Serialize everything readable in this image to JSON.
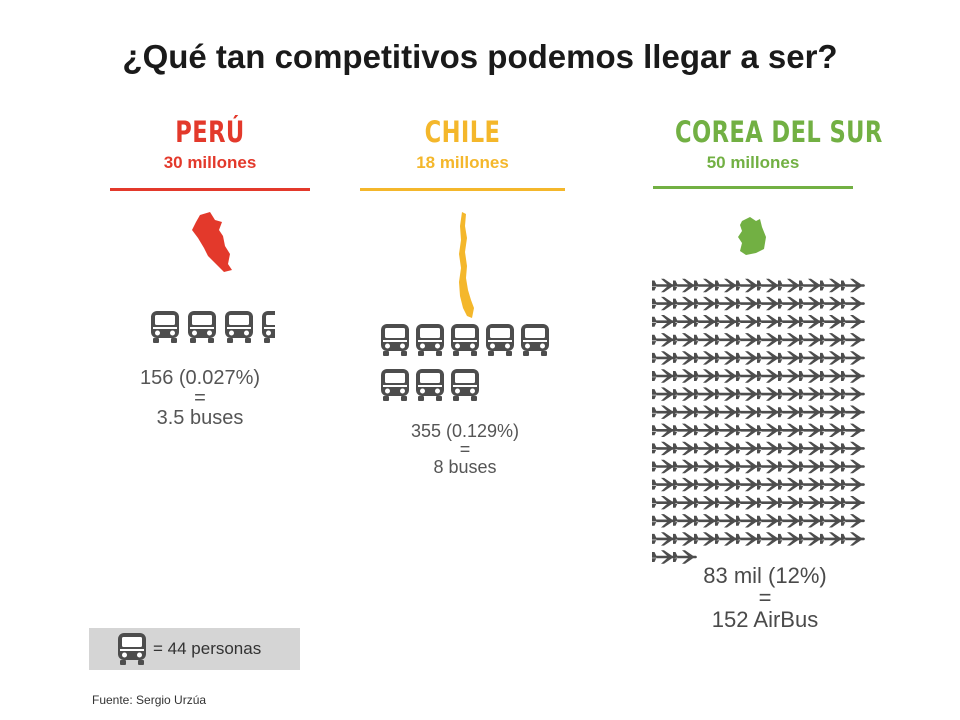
{
  "title": "¿Qué tan competitivos podemos llegar a ser?",
  "countries": [
    {
      "name": "PERÚ",
      "population": "30 millones",
      "color": "#e3392b",
      "stat_line1": "156 (0.027%)",
      "stat_eq": "=",
      "stat_line2": "3.5 buses",
      "icon_count": 3.5,
      "icon": "bus-icon"
    },
    {
      "name": "CHILE",
      "population": "18 millones",
      "color": "#f4b72b",
      "stat_line1": "355 (0.129%)",
      "stat_eq": "=",
      "stat_line2": "8 buses",
      "icon_count": 8,
      "icon": "bus-icon"
    },
    {
      "name": "COREA DEL SUR",
      "population": "50 millones",
      "color": "#72b043",
      "stat_line1": "83 mil (12%)",
      "stat_eq": "=",
      "stat_line2": "152 AirBus",
      "icon_count": 152,
      "icon": "airplane-icon"
    }
  ],
  "legend": {
    "text": "= 44 personas",
    "icon": "bus-icon"
  },
  "source": "Fuente: Sergio Urzúa",
  "colors": {
    "icon": "#4d4d4d",
    "stat_text": "#555555",
    "legend_bg": "#d5d5d5"
  }
}
